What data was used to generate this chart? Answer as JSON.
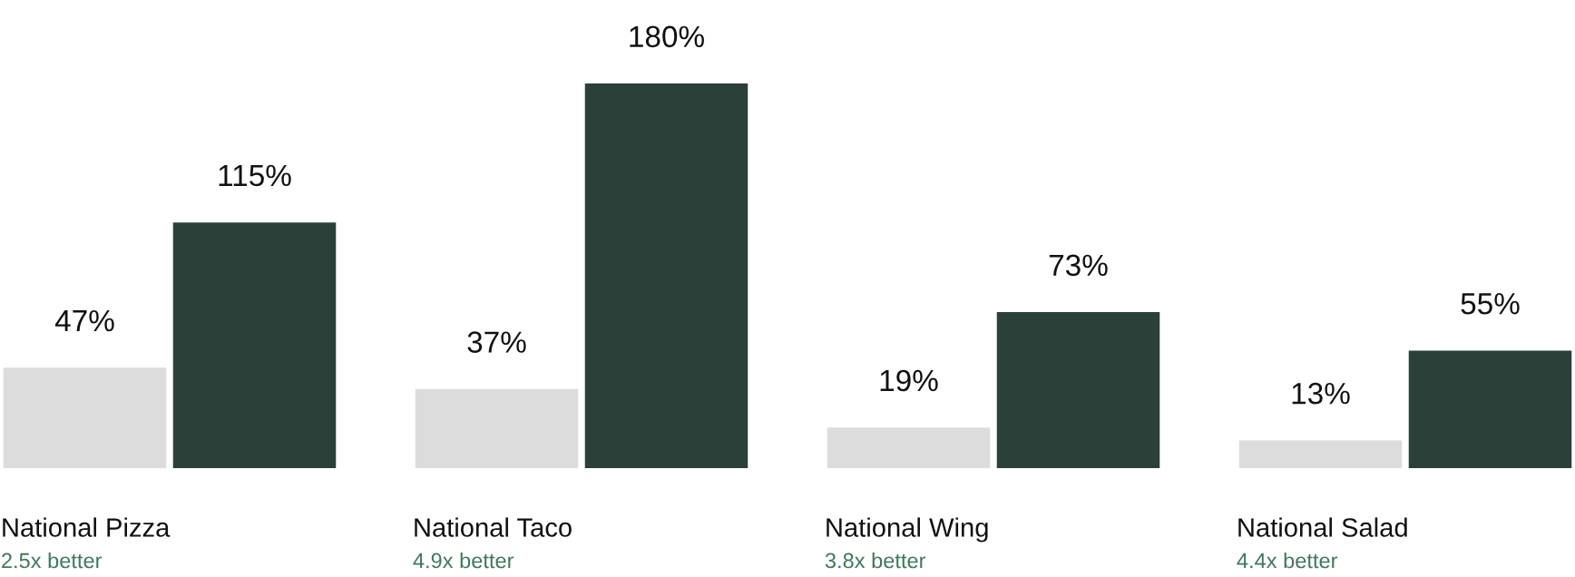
{
  "chart_data": {
    "type": "bar",
    "categories": [
      "National Pizza",
      "National Taco",
      "National Wing",
      "National Salad"
    ],
    "series": [
      {
        "color": "#dcdcdc",
        "values": [
          47,
          37,
          19,
          13
        ],
        "value_labels": [
          "47%",
          "37%",
          "19%",
          "13%"
        ]
      },
      {
        "color": "#2b4038",
        "values": [
          115,
          180,
          73,
          55
        ],
        "value_labels": [
          "115%",
          "180%",
          "73%",
          "55%"
        ]
      }
    ],
    "annotations": [
      "2.5x better",
      "4.9x better",
      "3.8x better",
      "4.4x better"
    ]
  }
}
